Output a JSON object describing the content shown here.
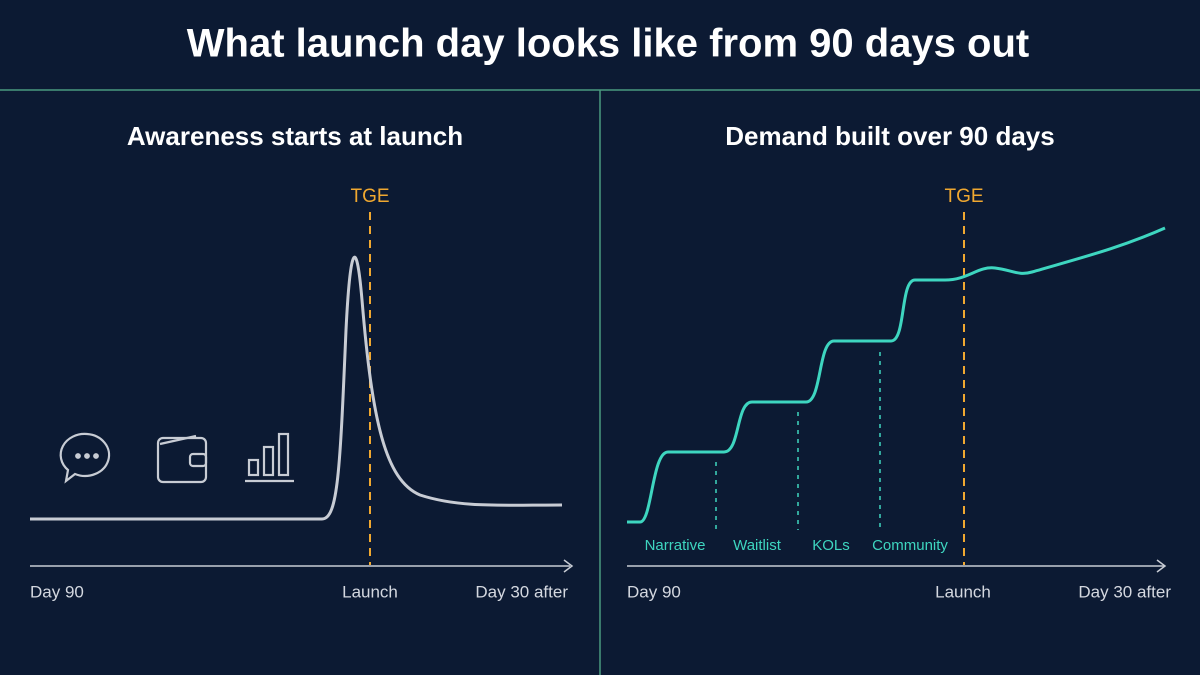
{
  "header": {
    "title": "What launch day looks like from 90 days out"
  },
  "left_panel": {
    "title": "Awareness starts at launch",
    "marker": "TGE",
    "axis_labels": [
      "Day 90",
      "Launch",
      "Day 30 after"
    ]
  },
  "right_panel": {
    "title": "Demand built over 90 days",
    "marker": "TGE",
    "stages": [
      "Narrative",
      "Waitlist",
      "KOLs",
      "Community"
    ],
    "axis_labels": [
      "Day 90",
      "Launch",
      "Day 30 after"
    ]
  }
}
